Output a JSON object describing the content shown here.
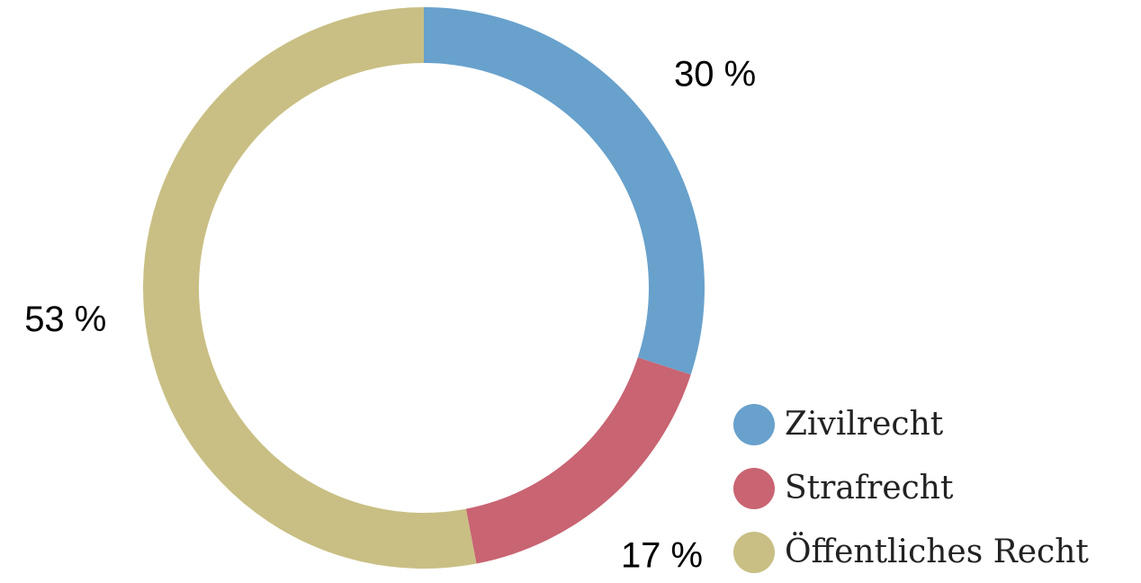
{
  "chart_data": {
    "type": "donut",
    "categories": [
      "Zivilrecht",
      "Strafrecht",
      "Öffentliches Recht"
    ],
    "values": [
      30,
      17,
      53
    ],
    "value_labels": [
      "30 %",
      "17 %",
      "53 %"
    ],
    "colors": [
      "#68a1cc",
      "#c96472",
      "#c9bf84"
    ],
    "legend": "bottom-right"
  }
}
